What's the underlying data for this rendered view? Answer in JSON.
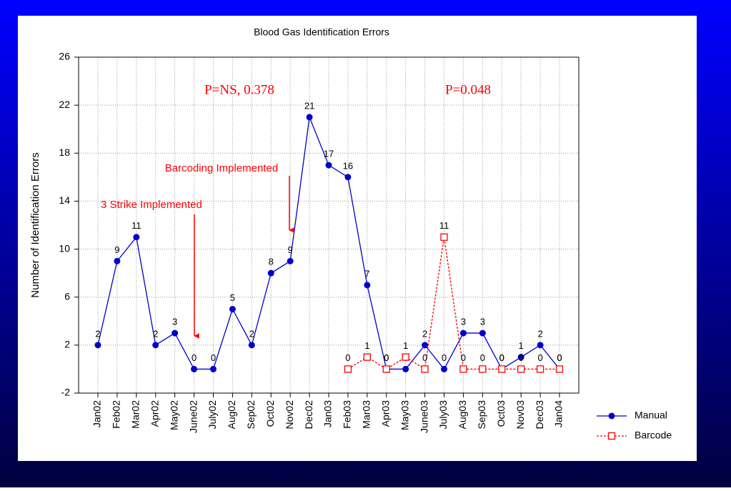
{
  "chart_data": {
    "type": "line",
    "title": "Blood Gas Identification Errors",
    "ylabel": "Number of Identification Errors",
    "categories": [
      "Jan02",
      "Feb02",
      "Mar02",
      "Apr02",
      "May02",
      "June02",
      "July02",
      "Aug02",
      "Sep02",
      "Oct02",
      "Nov02",
      "Dec02",
      "Jan03",
      "Feb03",
      "Mar03",
      "Apr03",
      "May03",
      "June03",
      "July03",
      "Aug03",
      "Sep03",
      "Oct03",
      "Nov03",
      "Dec03",
      "Jan04"
    ],
    "series": [
      {
        "name": "Manual",
        "color": "#0000cc",
        "marker": "circle",
        "dashed": false,
        "values": [
          2,
          9,
          11,
          2,
          3,
          0,
          0,
          5,
          2,
          8,
          9,
          21,
          17,
          16,
          7,
          0,
          0,
          2,
          0,
          3,
          3,
          0,
          1,
          2,
          0
        ]
      },
      {
        "name": "Barcode",
        "color": "#ff0000",
        "marker": "square",
        "dashed": true,
        "values": [
          null,
          null,
          null,
          null,
          null,
          null,
          null,
          null,
          null,
          null,
          null,
          null,
          null,
          0,
          1,
          0,
          1,
          0,
          11,
          0,
          0,
          0,
          0,
          0,
          0
        ]
      }
    ],
    "ylim": [
      -2,
      26
    ],
    "yticks": [
      -2,
      2,
      6,
      10,
      14,
      18,
      22,
      26
    ],
    "grid": true,
    "legend": "lower right",
    "annotations": [
      "P=NS, 0.378",
      "P=0.048",
      "Barcoding Implemented",
      "3 Strike Implemented"
    ]
  }
}
